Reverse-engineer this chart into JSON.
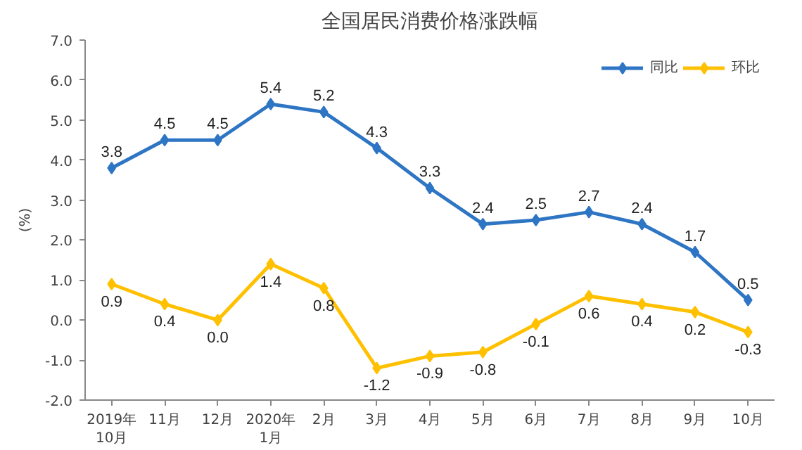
{
  "chart_data": {
    "type": "line",
    "title": "全国居民消费价格涨跌幅",
    "ylabel": "(%)",
    "categories": [
      "2019年\n10月",
      "11月",
      "12月",
      "2020年\n1月",
      "2月",
      "3月",
      "4月",
      "5月",
      "6月",
      "7月",
      "8月",
      "9月",
      "10月"
    ],
    "series": [
      {
        "name": "同比",
        "color": "#2e75c4",
        "values": [
          3.8,
          4.5,
          4.5,
          5.4,
          5.2,
          4.3,
          3.3,
          2.4,
          2.5,
          2.7,
          2.4,
          1.7,
          0.5
        ],
        "value_labels": [
          "3.8",
          "4.5",
          "4.5",
          "5.4",
          "5.2",
          "4.3",
          "3.3",
          "2.4",
          "2.5",
          "2.7",
          "2.4",
          "1.7",
          "0.5"
        ]
      },
      {
        "name": "环比",
        "color": "#ffc000",
        "values": [
          0.9,
          0.4,
          0.0,
          1.4,
          0.8,
          -1.2,
          -0.9,
          -0.8,
          -0.1,
          0.6,
          0.4,
          0.2,
          -0.3
        ],
        "value_labels": [
          "0.9",
          "0.4",
          "0.0",
          "1.4",
          "0.8",
          "-1.2",
          "-0.9",
          "-0.8",
          "-0.1",
          "0.6",
          "0.4",
          "0.2",
          "-0.3"
        ]
      }
    ],
    "ylim": [
      -2,
      7
    ],
    "yticks": [
      {
        "value": -2,
        "label": "-2.0"
      },
      {
        "value": -1,
        "label": "-1.0"
      },
      {
        "value": 0,
        "label": "0.0"
      },
      {
        "value": 1,
        "label": "1.0"
      },
      {
        "value": 2,
        "label": "2.0"
      },
      {
        "value": 3,
        "label": "3.0"
      },
      {
        "value": 4,
        "label": "4.0"
      },
      {
        "value": 5,
        "label": "5.0"
      },
      {
        "value": 6,
        "label": "6.0"
      },
      {
        "value": 7,
        "label": "7.0"
      }
    ],
    "grid": false,
    "legend": "top right",
    "marker": "diamond",
    "line_style": "solid"
  }
}
